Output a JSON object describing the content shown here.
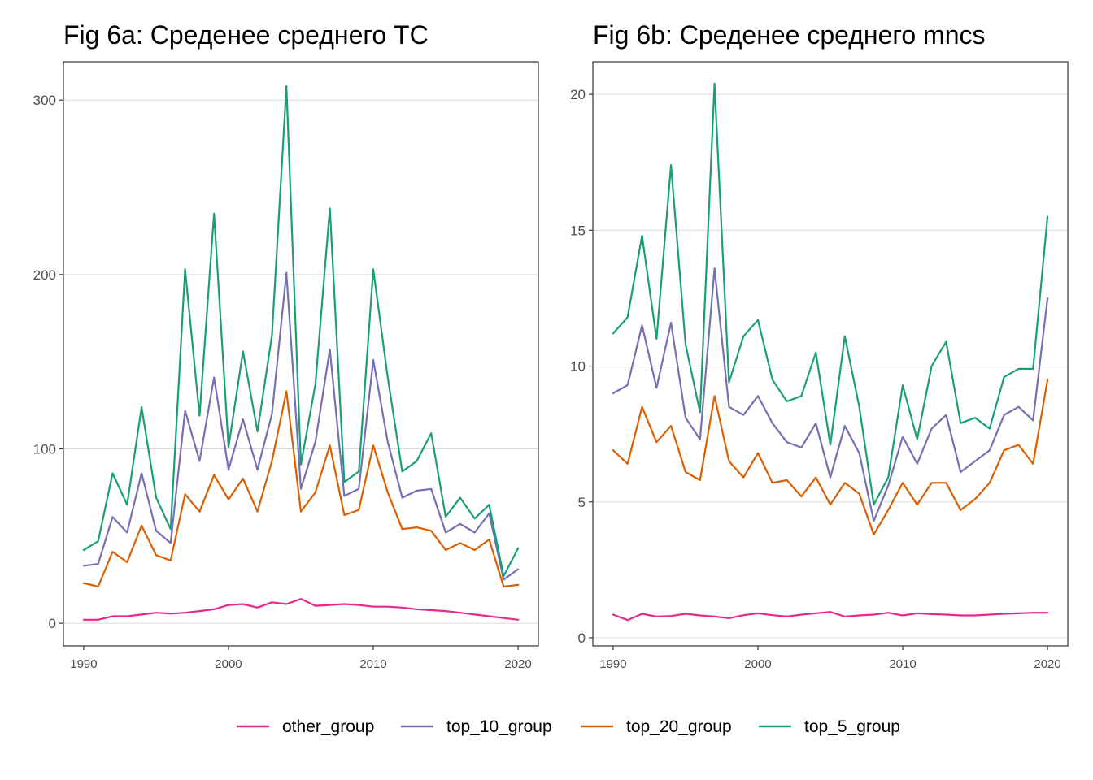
{
  "chart_data": [
    {
      "type": "line",
      "title": "Fig 6a: Среденее среднего TC",
      "xlabel": "",
      "ylabel": "",
      "xlim": [
        1988.6,
        2021.4
      ],
      "ylim": [
        -13,
        322
      ],
      "xticks": [
        1990,
        2000,
        2010,
        2020
      ],
      "yticks": [
        0,
        100,
        200,
        300
      ],
      "grid": true,
      "x": [
        1990,
        1991,
        1992,
        1993,
        1994,
        1995,
        1996,
        1997,
        1998,
        1999,
        2000,
        2001,
        2002,
        2003,
        2004,
        2005,
        2006,
        2007,
        2008,
        2009,
        2010,
        2011,
        2012,
        2013,
        2014,
        2015,
        2016,
        2017,
        2018,
        2019,
        2020
      ],
      "series": [
        {
          "name": "other_group",
          "color": "#e7298a",
          "values": [
            2,
            2,
            4,
            4,
            5,
            6,
            5.5,
            6,
            7,
            8,
            10.5,
            11,
            9,
            12,
            11,
            14,
            10,
            10.5,
            11,
            10.5,
            9.5,
            9.5,
            9,
            8,
            7.5,
            7,
            6,
            5,
            4,
            3,
            2
          ]
        },
        {
          "name": "top_10_group",
          "color": "#7570b3",
          "values": [
            33,
            34,
            61,
            52,
            86,
            53,
            46,
            122,
            93,
            141,
            88,
            117,
            88,
            120,
            201,
            77,
            104,
            157,
            73,
            77,
            151,
            104,
            72,
            76,
            77,
            52,
            57,
            52,
            63,
            25,
            31
          ]
        },
        {
          "name": "top_20_group",
          "color": "#d95f02",
          "values": [
            23,
            21,
            41,
            35,
            56,
            39,
            36,
            74,
            64,
            85,
            71,
            83,
            64,
            93,
            133,
            64,
            75,
            102,
            62,
            65,
            102,
            75,
            54,
            55,
            53,
            42,
            46,
            42,
            48,
            21,
            22
          ]
        },
        {
          "name": "top_5_group",
          "color": "#1b9e77",
          "values": [
            42,
            47,
            86,
            68,
            124,
            72,
            54,
            203,
            119,
            235,
            101,
            156,
            110,
            165,
            308,
            91,
            137,
            238,
            81,
            87,
            203,
            141,
            87,
            93,
            109,
            61,
            72,
            60,
            68,
            27,
            43
          ]
        }
      ]
    },
    {
      "type": "line",
      "title": "Fig 6b: Среденее среднего mncs",
      "xlabel": "",
      "ylabel": "",
      "xlim": [
        1988.6,
        2021.4
      ],
      "ylim": [
        -0.3,
        21.2
      ],
      "xticks": [
        1990,
        2000,
        2010,
        2020
      ],
      "yticks": [
        0,
        5,
        10,
        15,
        20
      ],
      "grid": true,
      "x": [
        1990,
        1991,
        1992,
        1993,
        1994,
        1995,
        1996,
        1997,
        1998,
        1999,
        2000,
        2001,
        2002,
        2003,
        2004,
        2005,
        2006,
        2007,
        2008,
        2009,
        2010,
        2011,
        2012,
        2013,
        2014,
        2015,
        2016,
        2017,
        2018,
        2019,
        2020
      ],
      "series": [
        {
          "name": "other_group",
          "color": "#e7298a",
          "values": [
            0.85,
            0.65,
            0.88,
            0.78,
            0.8,
            0.88,
            0.82,
            0.78,
            0.72,
            0.83,
            0.9,
            0.83,
            0.78,
            0.85,
            0.9,
            0.95,
            0.78,
            0.82,
            0.85,
            0.92,
            0.82,
            0.9,
            0.87,
            0.85,
            0.82,
            0.82,
            0.85,
            0.88,
            0.9,
            0.92,
            0.92
          ]
        },
        {
          "name": "top_10_group",
          "color": "#7570b3",
          "values": [
            9.0,
            9.3,
            11.5,
            9.2,
            11.6,
            8.1,
            7.3,
            13.6,
            8.5,
            8.2,
            8.9,
            7.9,
            7.2,
            7.0,
            7.9,
            5.9,
            7.8,
            6.8,
            4.3,
            5.6,
            7.4,
            6.4,
            7.7,
            8.2,
            6.1,
            6.5,
            6.9,
            8.2,
            8.5,
            8.0,
            12.5
          ]
        },
        {
          "name": "top_20_group",
          "color": "#d95f02",
          "values": [
            6.9,
            6.4,
            8.5,
            7.2,
            7.8,
            6.1,
            5.8,
            8.9,
            6.5,
            5.9,
            6.8,
            5.7,
            5.8,
            5.2,
            5.9,
            4.9,
            5.7,
            5.3,
            3.8,
            4.7,
            5.7,
            4.9,
            5.7,
            5.7,
            4.7,
            5.1,
            5.7,
            6.9,
            7.1,
            6.4,
            9.5
          ]
        },
        {
          "name": "top_5_group",
          "color": "#1b9e77",
          "values": [
            11.2,
            11.8,
            14.8,
            11.0,
            17.4,
            10.8,
            8.3,
            20.4,
            9.4,
            11.1,
            11.7,
            9.5,
            8.7,
            8.9,
            10.5,
            7.1,
            11.1,
            8.5,
            4.9,
            5.9,
            9.3,
            7.3,
            10.0,
            10.9,
            7.9,
            8.1,
            7.7,
            9.6,
            9.9,
            9.9,
            15.5
          ]
        }
      ]
    }
  ],
  "legend": {
    "position": "bottom",
    "items": [
      {
        "label": "other_group",
        "color": "#e7298a"
      },
      {
        "label": "top_10_group",
        "color": "#7570b3"
      },
      {
        "label": "top_20_group",
        "color": "#d95f02"
      },
      {
        "label": "top_5_group",
        "color": "#1b9e77"
      }
    ]
  }
}
